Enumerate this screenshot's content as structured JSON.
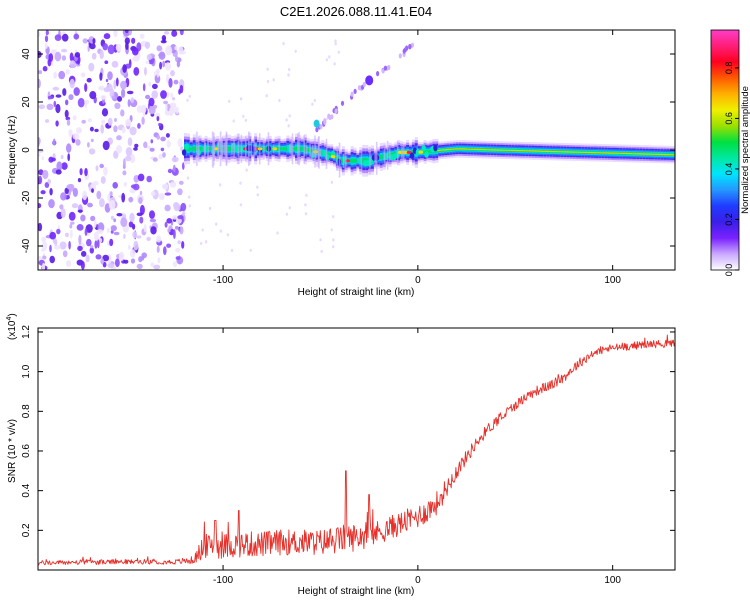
{
  "title": "C2E1.2026.088.11.41.E04",
  "chart_data": [
    {
      "type": "heatmap",
      "name": "spectrogram",
      "xlabel": "Height of straight line (km)",
      "ylabel": "Frequency (Hz)",
      "xlim": [
        -195,
        132
      ],
      "ylim": [
        -50,
        50
      ],
      "xticks": [
        -100,
        0,
        100
      ],
      "xtick_labels": [
        "-100",
        "0",
        "100"
      ],
      "yticks": [
        -40,
        -20,
        0,
        20,
        40
      ],
      "ytick_labels": [
        "-40",
        "-20",
        "0",
        "20",
        "40"
      ],
      "noise_region_km": [
        -195,
        -120
      ],
      "signal_start_km": -120,
      "ridge": [
        {
          "x": -120,
          "y": 0.5
        },
        {
          "x": -60,
          "y": 0.5
        },
        {
          "x": -45,
          "y": -2
        },
        {
          "x": -40,
          "y": -4.5
        },
        {
          "x": -25,
          "y": -4.5
        },
        {
          "x": -20,
          "y": -3
        },
        {
          "x": -10,
          "y": -1
        },
        {
          "x": 0,
          "y": -1
        },
        {
          "x": 20,
          "y": 0.5
        },
        {
          "x": 40,
          "y": 0
        },
        {
          "x": 132,
          "y": -2
        }
      ],
      "branch": [
        {
          "x": -52,
          "y": 8
        },
        {
          "x": -40,
          "y": 18
        },
        {
          "x": -25,
          "y": 29
        },
        {
          "x": -12,
          "y": 37
        },
        {
          "x": 0,
          "y": 46
        }
      ],
      "colorbar": {
        "label": "Normalized spectral amplitude",
        "range": [
          0,
          0.95
        ],
        "ticks": [
          0.0,
          0.2,
          0.4,
          0.6,
          0.8
        ],
        "tick_labels": [
          "0.0",
          "0.2",
          "0.4",
          "0.6",
          "0.8"
        ],
        "colors": [
          "#ffffff",
          "#c9a8ff",
          "#7a22ff",
          "#3a1fe8",
          "#1f3cff",
          "#2596ff",
          "#00e5ff",
          "#00e8a0",
          "#00e040",
          "#9be000",
          "#f0f000",
          "#ffb000",
          "#ff5a00",
          "#ff0020",
          "#ff1e78",
          "#ff3cc8"
        ]
      }
    },
    {
      "type": "line",
      "name": "snr",
      "xlabel": "Height of straight line (km)",
      "ylabel": "SNR (10 * v/v)",
      "scale_label": "(x10",
      "scale_exp": "4",
      "xlim": [
        -195,
        132
      ],
      "ylim": [
        0,
        1.22
      ],
      "xticks": [
        -100,
        0,
        100
      ],
      "xtick_labels": [
        "-100",
        "0",
        "100"
      ],
      "yticks": [
        0.2,
        0.4,
        0.6,
        0.8,
        1.0,
        1.2
      ],
      "ytick_labels": [
        "0.2",
        "0.4",
        "0.6",
        "0.8",
        "1.0",
        "1.2"
      ],
      "color": "#e8302a",
      "x": [
        -195,
        -180,
        -160,
        -140,
        -125,
        -115,
        -110,
        -100,
        -90,
        -80,
        -70,
        -60,
        -50,
        -42,
        -38,
        -35,
        -30,
        -25,
        -20,
        -15,
        -10,
        -5,
        0,
        5,
        10,
        15,
        20,
        25,
        30,
        35,
        40,
        45,
        50,
        55,
        60,
        65,
        70,
        75,
        80,
        85,
        90,
        95,
        100,
        110,
        120,
        132
      ],
      "y": [
        0.035,
        0.038,
        0.04,
        0.042,
        0.04,
        0.05,
        0.12,
        0.12,
        0.13,
        0.13,
        0.14,
        0.14,
        0.14,
        0.15,
        0.16,
        0.16,
        0.17,
        0.18,
        0.19,
        0.21,
        0.23,
        0.25,
        0.27,
        0.3,
        0.34,
        0.42,
        0.5,
        0.57,
        0.64,
        0.7,
        0.75,
        0.79,
        0.83,
        0.87,
        0.9,
        0.92,
        0.94,
        0.97,
        1.02,
        1.06,
        1.09,
        1.11,
        1.12,
        1.13,
        1.14,
        1.14
      ],
      "noise": [
        0.012,
        0.012,
        0.012,
        0.012,
        0.012,
        0.02,
        0.06,
        0.065,
        0.065,
        0.065,
        0.065,
        0.065,
        0.065,
        0.07,
        0.07,
        0.07,
        0.07,
        0.07,
        0.06,
        0.06,
        0.06,
        0.06,
        0.06,
        0.06,
        0.06,
        0.05,
        0.04,
        0.035,
        0.03,
        0.03,
        0.03,
        0.03,
        0.025,
        0.025,
        0.025,
        0.025,
        0.025,
        0.025,
        0.025,
        0.025,
        0.02,
        0.02,
        0.02,
        0.02,
        0.02,
        0.02
      ],
      "spikes": [
        {
          "x": -37,
          "y": 0.5
        },
        {
          "x": -25,
          "y": 0.38
        },
        {
          "x": -104,
          "y": 0.25
        },
        {
          "x": -92,
          "y": 0.3
        }
      ]
    }
  ]
}
